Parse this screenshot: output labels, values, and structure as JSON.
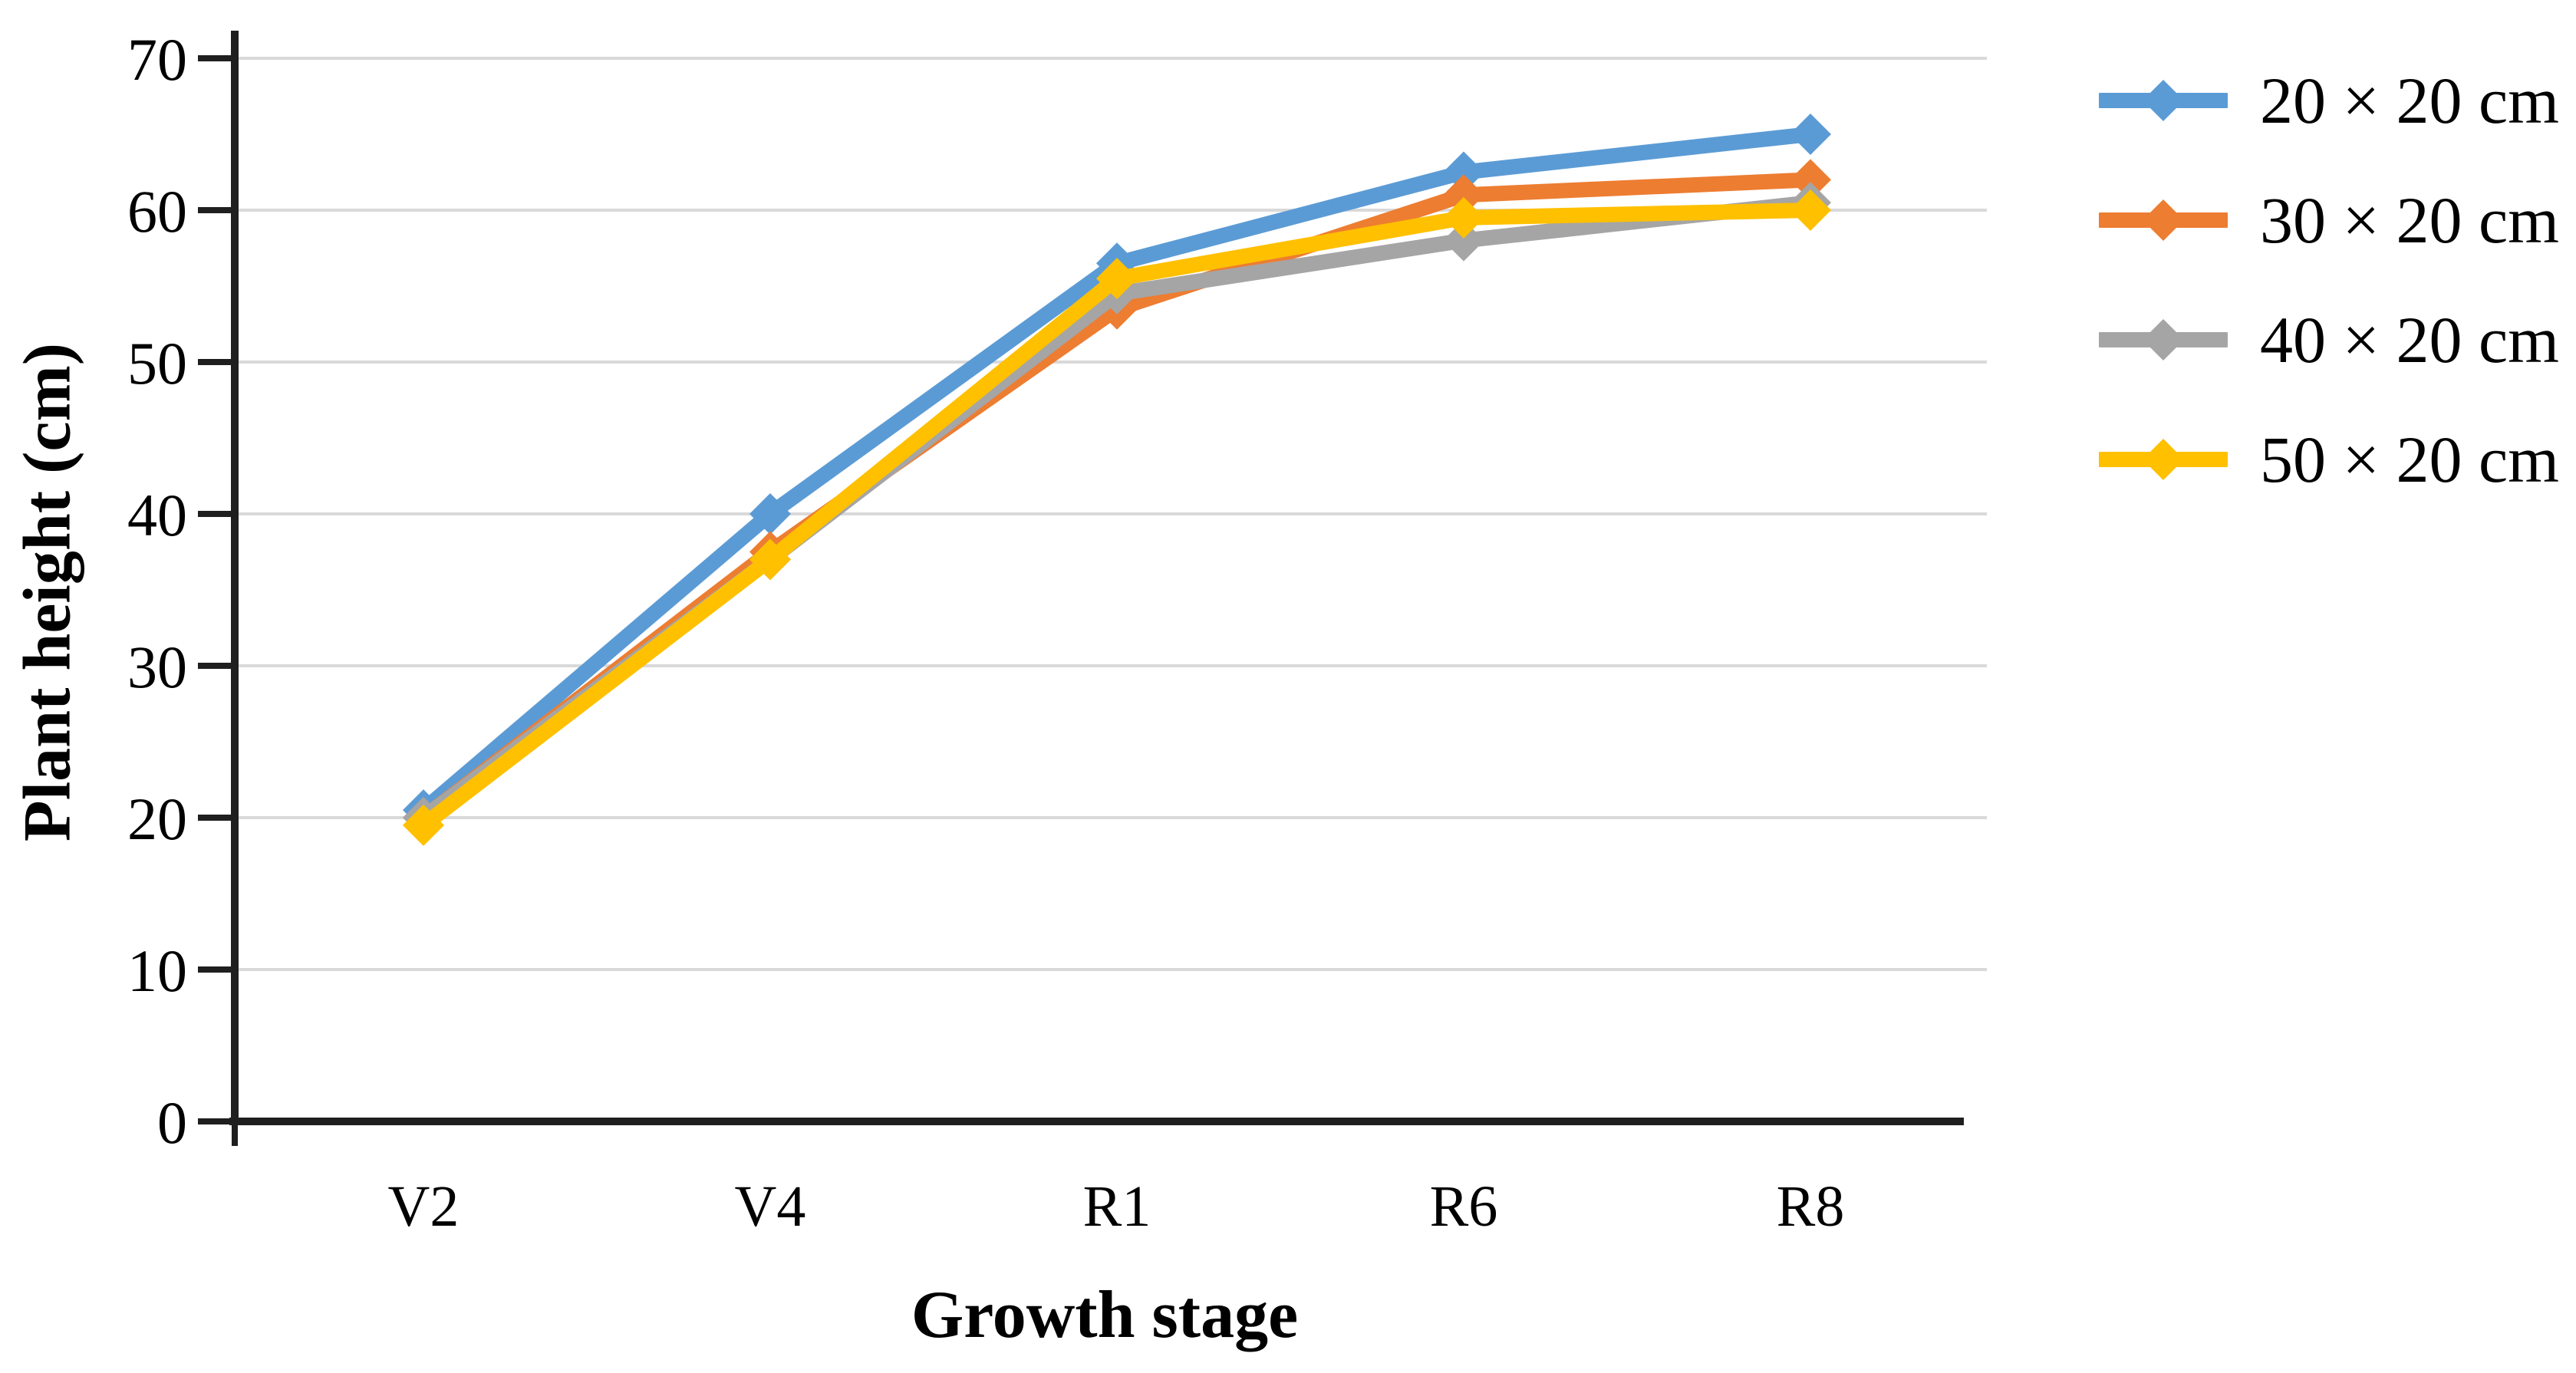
{
  "chart_data": {
    "type": "line",
    "title": "",
    "xlabel": "Growth stage",
    "ylabel": "Plant height (cm)",
    "categories": [
      "V2",
      "V4",
      "R1",
      "R6",
      "R8"
    ],
    "series": [
      {
        "name": "20 × 20 cm",
        "color": "#5B9BD5",
        "values": [
          20.5,
          40,
          56.5,
          62.5,
          65
        ]
      },
      {
        "name": "30 × 20 cm",
        "color": "#ED7D31",
        "values": [
          20,
          37.5,
          53.5,
          61,
          62
        ]
      },
      {
        "name": "40 × 20 cm",
        "color": "#A5A5A5",
        "values": [
          20,
          37,
          54.5,
          58,
          60.5
        ]
      },
      {
        "name": "50 × 20 cm",
        "color": "#FFC000",
        "values": [
          19.5,
          37,
          55.5,
          59.5,
          60
        ]
      }
    ],
    "ylim": [
      0,
      70
    ],
    "yticks": [
      0,
      10,
      20,
      30,
      40,
      50,
      60,
      70
    ],
    "grid": "horizontal",
    "legend_position": "right",
    "marker": "diamond"
  },
  "styles": {
    "gridline_color": "#D9D9D9",
    "axis_color": "#1F1F1F",
    "text_color": "#000000",
    "background": "#FFFFFF"
  }
}
